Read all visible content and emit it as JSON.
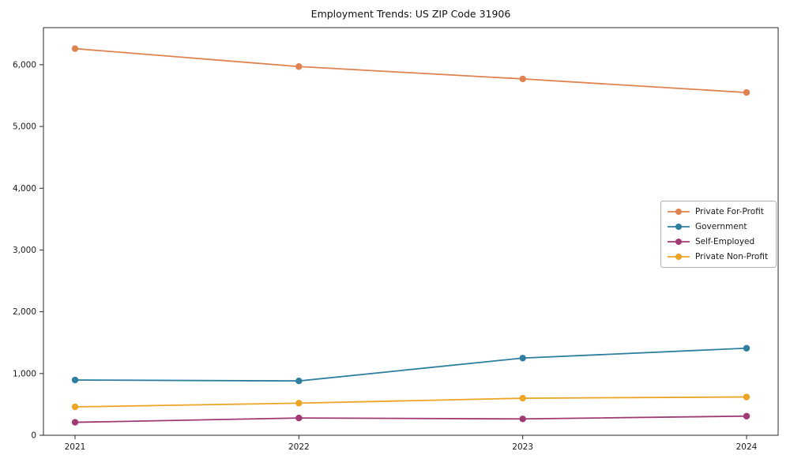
{
  "chart_data": {
    "type": "line",
    "title": "Employment Trends: US ZIP Code 31906",
    "xlabel": "",
    "ylabel": "",
    "x_tick_labels": [
      "2021",
      "2022",
      "2023",
      "2024"
    ],
    "y_ticks": [
      0,
      1000,
      2000,
      3000,
      4000,
      5000,
      6000
    ],
    "y_tick_labels": [
      "0",
      "1,000",
      "2,000",
      "3,000",
      "4,000",
      "5,000",
      "6,000"
    ],
    "ylim": [
      0,
      6600
    ],
    "grid": false,
    "legend_position": "center-right",
    "series": [
      {
        "name": "Private For-Profit",
        "color": "#e0824f",
        "values": [
          6260,
          5970,
          5770,
          5550
        ]
      },
      {
        "name": "Government",
        "color": "#2e7ea0",
        "values": [
          895,
          880,
          1250,
          1410
        ]
      },
      {
        "name": "Self-Employed",
        "color": "#a03a75",
        "values": [
          210,
          280,
          265,
          310
        ]
      },
      {
        "name": "Private Non-Profit",
        "color": "#eda323",
        "values": [
          460,
          520,
          600,
          620
        ]
      }
    ]
  }
}
